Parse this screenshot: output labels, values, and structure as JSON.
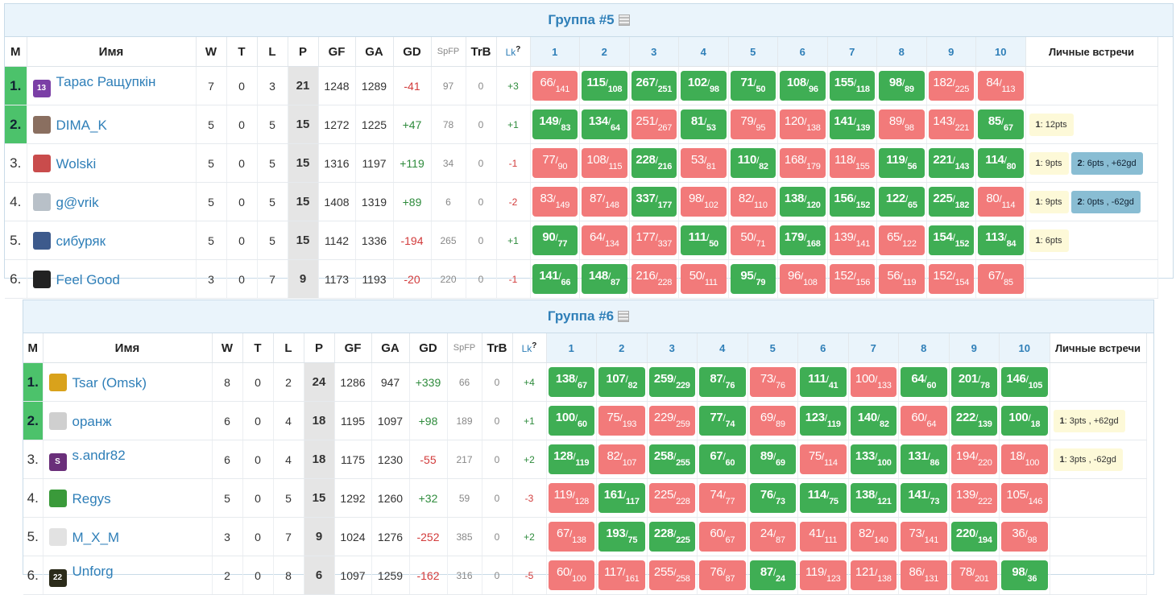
{
  "groups": [
    {
      "title": "Группа #5",
      "headers": {
        "pos": "М",
        "name": "Имя",
        "w": "W",
        "t": "T",
        "l": "L",
        "p": "P",
        "gf": "GF",
        "ga": "GA",
        "gd": "GD",
        "spfp": "SpFP",
        "trb": "TrB",
        "lk": "Lk",
        "lk_sup": "?",
        "h2h": "Личные встречи"
      },
      "match_headers": [
        "1",
        "2",
        "3",
        "4",
        "5",
        "6",
        "7",
        "8",
        "9",
        "10"
      ],
      "rows": [
        {
          "pos": "1.",
          "name": "Тарас Ращупкін",
          "avatar_text": "13",
          "avatar_color": "#7b3fa6",
          "w": "7",
          "t": "0",
          "l": "3",
          "p": "21",
          "gf": "1248",
          "ga": "1289",
          "gd": "-41",
          "spfp": "97",
          "trb": "0",
          "lk": "+3",
          "scores": [
            [
              "66",
              "141"
            ],
            [
              "115",
              "108"
            ],
            [
              "267",
              "251"
            ],
            [
              "102",
              "98"
            ],
            [
              "71",
              "50"
            ],
            [
              "108",
              "96"
            ],
            [
              "155",
              "118"
            ],
            [
              "98",
              "89"
            ],
            [
              "182",
              "225"
            ],
            [
              "84",
              "113"
            ]
          ],
          "h2h": []
        },
        {
          "pos": "2.",
          "name": "DIMA_K",
          "avatar_text": "",
          "avatar_color": "#8a6f60",
          "w": "5",
          "t": "0",
          "l": "5",
          "p": "15",
          "gf": "1272",
          "ga": "1225",
          "gd": "+47",
          "spfp": "78",
          "trb": "0",
          "lk": "+1",
          "scores": [
            [
              "149",
              "83"
            ],
            [
              "134",
              "64"
            ],
            [
              "251",
              "267"
            ],
            [
              "81",
              "53"
            ],
            [
              "79",
              "95"
            ],
            [
              "120",
              "138"
            ],
            [
              "141",
              "139"
            ],
            [
              "89",
              "98"
            ],
            [
              "143",
              "221"
            ],
            [
              "85",
              "67"
            ]
          ],
          "h2h": [
            {
              "k": "1",
              "v": ": 12pts",
              "style": "y"
            }
          ]
        },
        {
          "pos": "3.",
          "name": "Wolski",
          "avatar_text": "",
          "avatar_color": "#c94c4c",
          "w": "5",
          "t": "0",
          "l": "5",
          "p": "15",
          "gf": "1316",
          "ga": "1197",
          "gd": "+119",
          "spfp": "34",
          "trb": "0",
          "lk": "-1",
          "scores": [
            [
              "77",
              "90"
            ],
            [
              "108",
              "115"
            ],
            [
              "228",
              "216"
            ],
            [
              "53",
              "81"
            ],
            [
              "110",
              "82"
            ],
            [
              "168",
              "179"
            ],
            [
              "118",
              "155"
            ],
            [
              "119",
              "56"
            ],
            [
              "221",
              "143"
            ],
            [
              "114",
              "80"
            ]
          ],
          "h2h": [
            {
              "k": "1",
              "v": ": 9pts",
              "style": "y"
            },
            {
              "k": "2",
              "v": ": 6pts , +62gd",
              "style": "b"
            }
          ]
        },
        {
          "pos": "4.",
          "name": "g@vrik",
          "avatar_text": "",
          "avatar_color": "#b8c0c8",
          "w": "5",
          "t": "0",
          "l": "5",
          "p": "15",
          "gf": "1408",
          "ga": "1319",
          "gd": "+89",
          "spfp": "6",
          "trb": "0",
          "lk": "-2",
          "scores": [
            [
              "83",
              "149"
            ],
            [
              "87",
              "148"
            ],
            [
              "337",
              "177"
            ],
            [
              "98",
              "102"
            ],
            [
              "82",
              "110"
            ],
            [
              "138",
              "120"
            ],
            [
              "156",
              "152"
            ],
            [
              "122",
              "65"
            ],
            [
              "225",
              "182"
            ],
            [
              "80",
              "114"
            ]
          ],
          "h2h": [
            {
              "k": "1",
              "v": ": 9pts",
              "style": "y"
            },
            {
              "k": "2",
              "v": ": 0pts , -62gd",
              "style": "b"
            }
          ]
        },
        {
          "pos": "5.",
          "name": "сибуряк",
          "avatar_text": "",
          "avatar_color": "#3d5a8c",
          "w": "5",
          "t": "0",
          "l": "5",
          "p": "15",
          "gf": "1142",
          "ga": "1336",
          "gd": "-194",
          "spfp": "265",
          "trb": "0",
          "lk": "+1",
          "scores": [
            [
              "90",
              "77"
            ],
            [
              "64",
              "134"
            ],
            [
              "177",
              "337"
            ],
            [
              "111",
              "50"
            ],
            [
              "50",
              "71"
            ],
            [
              "179",
              "168"
            ],
            [
              "139",
              "141"
            ],
            [
              "65",
              "122"
            ],
            [
              "154",
              "152"
            ],
            [
              "113",
              "84"
            ]
          ],
          "h2h": [
            {
              "k": "1",
              "v": ": 6pts",
              "style": "y"
            }
          ]
        },
        {
          "pos": "6.",
          "name": "Feel Good",
          "avatar_text": "",
          "avatar_color": "#222222",
          "w": "3",
          "t": "0",
          "l": "7",
          "p": "9",
          "gf": "1173",
          "ga": "1193",
          "gd": "-20",
          "spfp": "220",
          "trb": "0",
          "lk": "-1",
          "scores": [
            [
              "141",
              "66"
            ],
            [
              "148",
              "87"
            ],
            [
              "216",
              "228"
            ],
            [
              "50",
              "111"
            ],
            [
              "95",
              "79"
            ],
            [
              "96",
              "108"
            ],
            [
              "152",
              "156"
            ],
            [
              "56",
              "119"
            ],
            [
              "152",
              "154"
            ],
            [
              "67",
              "85"
            ]
          ],
          "h2h": []
        }
      ]
    },
    {
      "title": "Группа #6",
      "headers": {
        "pos": "М",
        "name": "Имя",
        "w": "W",
        "t": "T",
        "l": "L",
        "p": "P",
        "gf": "GF",
        "ga": "GA",
        "gd": "GD",
        "spfp": "SpFP",
        "trb": "TrB",
        "lk": "Lk",
        "lk_sup": "?",
        "h2h": "Личные встречи"
      },
      "match_headers": [
        "1",
        "2",
        "3",
        "4",
        "5",
        "6",
        "7",
        "8",
        "9",
        "10"
      ],
      "rows": [
        {
          "pos": "1.",
          "name": "Tsar (Omsk)",
          "avatar_text": "",
          "avatar_color": "#d9a21b",
          "w": "8",
          "t": "0",
          "l": "2",
          "p": "24",
          "gf": "1286",
          "ga": "947",
          "gd": "+339",
          "spfp": "66",
          "trb": "0",
          "lk": "+4",
          "scores": [
            [
              "138",
              "67"
            ],
            [
              "107",
              "82"
            ],
            [
              "259",
              "229"
            ],
            [
              "87",
              "76"
            ],
            [
              "73",
              "76"
            ],
            [
              "111",
              "41"
            ],
            [
              "100",
              "133"
            ],
            [
              "64",
              "60"
            ],
            [
              "201",
              "78"
            ],
            [
              "146",
              "105"
            ]
          ],
          "h2h": []
        },
        {
          "pos": "2.",
          "name": "оранж",
          "avatar_text": "",
          "avatar_color": "#cfcfcf",
          "w": "6",
          "t": "0",
          "l": "4",
          "p": "18",
          "gf": "1195",
          "ga": "1097",
          "gd": "+98",
          "spfp": "189",
          "trb": "0",
          "lk": "+1",
          "scores": [
            [
              "100",
              "60"
            ],
            [
              "75",
              "193"
            ],
            [
              "229",
              "259"
            ],
            [
              "77",
              "74"
            ],
            [
              "69",
              "89"
            ],
            [
              "123",
              "119"
            ],
            [
              "140",
              "82"
            ],
            [
              "60",
              "64"
            ],
            [
              "222",
              "139"
            ],
            [
              "100",
              "18"
            ]
          ],
          "h2h": [
            {
              "k": "1",
              "v": ": 3pts , +62gd",
              "style": "y"
            }
          ]
        },
        {
          "pos": "3.",
          "name": "s.andr82",
          "avatar_text": "S",
          "avatar_color": "#6a2f7a",
          "w": "6",
          "t": "0",
          "l": "4",
          "p": "18",
          "gf": "1175",
          "ga": "1230",
          "gd": "-55",
          "spfp": "217",
          "trb": "0",
          "lk": "+2",
          "scores": [
            [
              "128",
              "119"
            ],
            [
              "82",
              "107"
            ],
            [
              "258",
              "255"
            ],
            [
              "67",
              "60"
            ],
            [
              "89",
              "69"
            ],
            [
              "75",
              "114"
            ],
            [
              "133",
              "100"
            ],
            [
              "131",
              "86"
            ],
            [
              "194",
              "220"
            ],
            [
              "18",
              "100"
            ]
          ],
          "h2h": [
            {
              "k": "1",
              "v": ": 3pts , -62gd",
              "style": "y"
            }
          ]
        },
        {
          "pos": "4.",
          "name": "Regys",
          "avatar_text": "",
          "avatar_color": "#3a9a3a",
          "w": "5",
          "t": "0",
          "l": "5",
          "p": "15",
          "gf": "1292",
          "ga": "1260",
          "gd": "+32",
          "spfp": "59",
          "trb": "0",
          "lk": "-3",
          "scores": [
            [
              "119",
              "128"
            ],
            [
              "161",
              "117"
            ],
            [
              "225",
              "228"
            ],
            [
              "74",
              "77"
            ],
            [
              "76",
              "73"
            ],
            [
              "114",
              "75"
            ],
            [
              "138",
              "121"
            ],
            [
              "141",
              "73"
            ],
            [
              "139",
              "222"
            ],
            [
              "105",
              "146"
            ]
          ],
          "h2h": []
        },
        {
          "pos": "5.",
          "name": "M_X_M",
          "avatar_text": "",
          "avatar_color": "#e2e2e2",
          "w": "3",
          "t": "0",
          "l": "7",
          "p": "9",
          "gf": "1024",
          "ga": "1276",
          "gd": "-252",
          "spfp": "385",
          "trb": "0",
          "lk": "+2",
          "scores": [
            [
              "67",
              "138"
            ],
            [
              "193",
              "75"
            ],
            [
              "228",
              "225"
            ],
            [
              "60",
              "67"
            ],
            [
              "24",
              "87"
            ],
            [
              "41",
              "111"
            ],
            [
              "82",
              "140"
            ],
            [
              "73",
              "141"
            ],
            [
              "220",
              "194"
            ],
            [
              "36",
              "98"
            ]
          ],
          "h2h": []
        },
        {
          "pos": "6.",
          "name": "Unforg",
          "avatar_text": "22",
          "avatar_color": "#2b2b1a",
          "w": "2",
          "t": "0",
          "l": "8",
          "p": "6",
          "gf": "1097",
          "ga": "1259",
          "gd": "-162",
          "spfp": "316",
          "trb": "0",
          "lk": "-5",
          "scores": [
            [
              "60",
              "100"
            ],
            [
              "117",
              "161"
            ],
            [
              "255",
              "258"
            ],
            [
              "76",
              "87"
            ],
            [
              "87",
              "24"
            ],
            [
              "119",
              "123"
            ],
            [
              "121",
              "138"
            ],
            [
              "86",
              "131"
            ],
            [
              "78",
              "201"
            ],
            [
              "98",
              "36"
            ]
          ],
          "h2h": []
        }
      ]
    }
  ]
}
